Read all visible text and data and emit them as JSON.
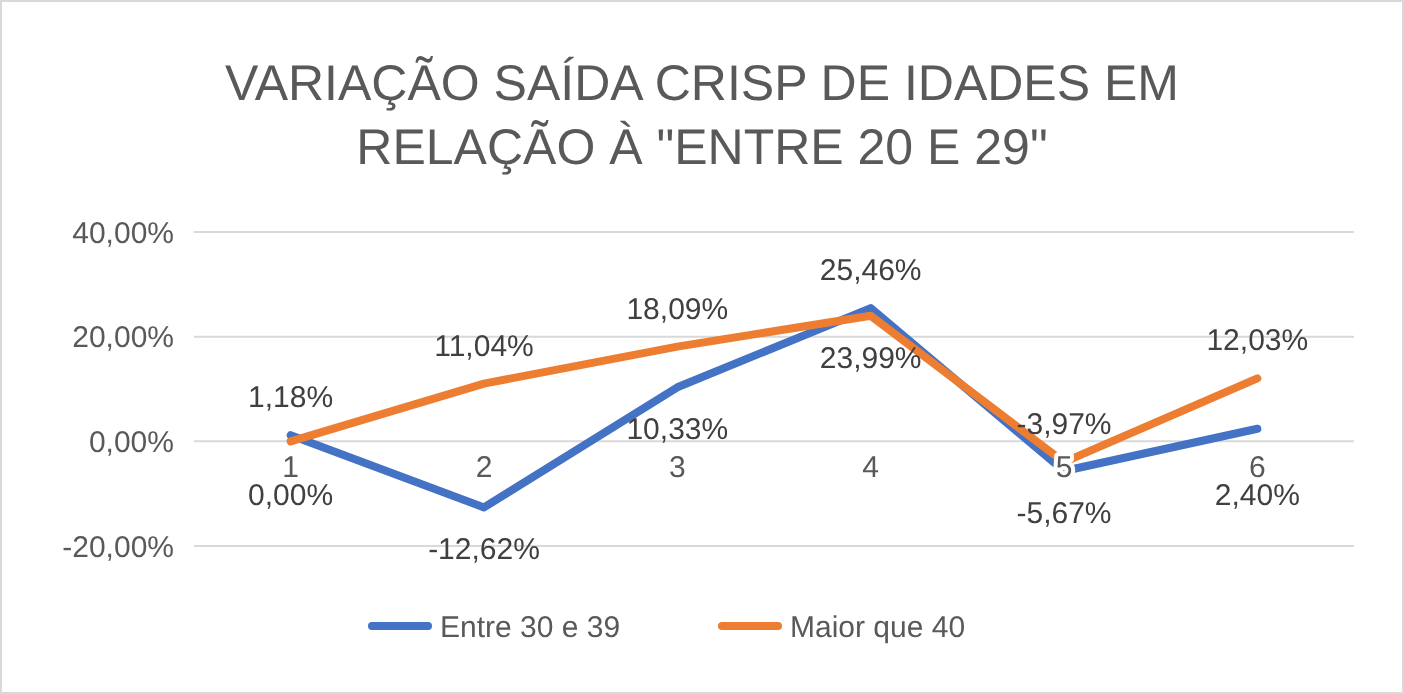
{
  "chart_data": {
    "type": "line",
    "title": "VARIAÇÃO SAÍDA CRISP DE IDADES EM RELAÇÃO À \"ENTRE 20 E 29\"",
    "categories": [
      "1",
      "2",
      "3",
      "4",
      "5",
      "6"
    ],
    "series": [
      {
        "name": "Entre 30 e 39",
        "color": "#4472c4",
        "values": [
          1.18,
          -12.62,
          10.33,
          25.46,
          -5.67,
          2.4
        ],
        "value_labels": [
          "1,18%",
          "-12,62%",
          "10,33%",
          "25,46%",
          "-5,67%",
          "2,40%"
        ]
      },
      {
        "name": "Maior que 40",
        "color": "#ed7d31",
        "values": [
          0.0,
          11.04,
          18.09,
          23.99,
          -3.97,
          12.03
        ],
        "value_labels": [
          "0,00%",
          "11,04%",
          "18,09%",
          "23,99%",
          "-3,97%",
          "12,03%"
        ]
      }
    ],
    "ylim": [
      -20,
      40
    ],
    "yticks": [
      {
        "value": -20,
        "label": "-20,00%"
      },
      {
        "value": 0,
        "label": "0,00%"
      },
      {
        "value": 20,
        "label": "20,00%"
      },
      {
        "value": 40,
        "label": "40,00%"
      }
    ],
    "grid": "y",
    "legend": "bottom",
    "marker": "none",
    "line_style": "solid"
  }
}
